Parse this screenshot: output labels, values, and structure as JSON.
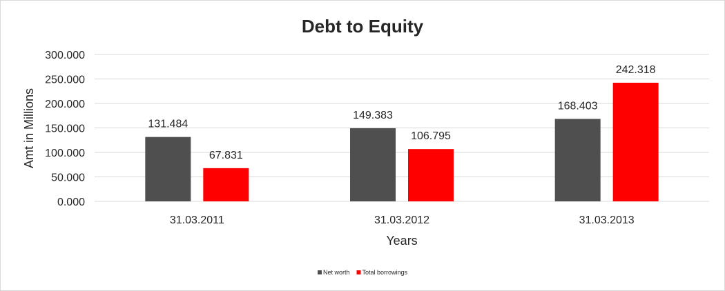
{
  "chart_data": {
    "type": "bar",
    "title": "Debt to Equity",
    "xlabel": "Years",
    "ylabel": "Amt in Millions",
    "categories": [
      "31.03.2011",
      "31.03.2012",
      "31.03.2013"
    ],
    "series": [
      {
        "name": "Net worth",
        "values": [
          131.484,
          149.383,
          168.403
        ],
        "color": "#4f4f4f"
      },
      {
        "name": "Total borrowings",
        "values": [
          67.831,
          106.795,
          242.318
        ],
        "color": "#ff0000"
      }
    ],
    "ylim": [
      0,
      300
    ],
    "yticks": [
      "0.000",
      "50.000",
      "100.000",
      "150.000",
      "200.000",
      "250.000",
      "300.000"
    ],
    "grid": true,
    "legend_position": "bottom"
  }
}
